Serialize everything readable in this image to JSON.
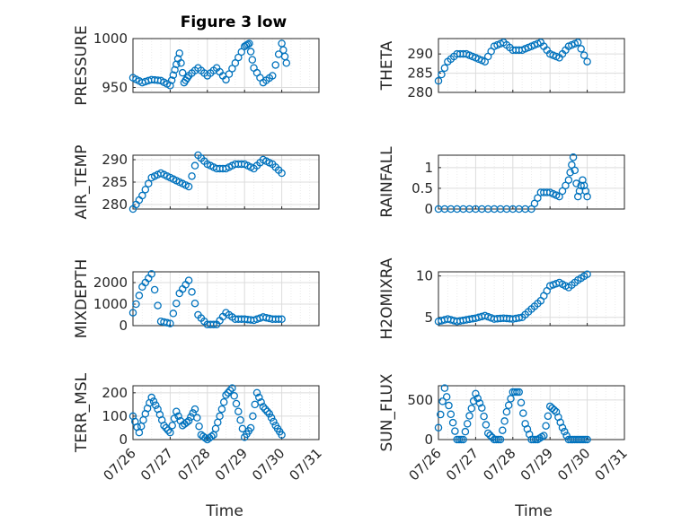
{
  "figure": {
    "title": "Figure 3 low",
    "marker_color": "#0072BD",
    "x_ticks": [
      "07/26",
      "07/27",
      "07/28",
      "07/29",
      "07/30",
      "07/31"
    ],
    "xlabel": "Time"
  },
  "chart_data": [
    {
      "type": "scatter",
      "ylabel": "PRESSURE",
      "ylim": [
        945,
        1000
      ],
      "yticks": [
        "950",
        "1000"
      ],
      "ytick_values": [
        950,
        1000
      ],
      "x": [
        "07/26 00:00",
        "07/26 06:00",
        "07/26 12:00",
        "07/26 18:00",
        "07/27 00:00",
        "07/27 03:00",
        "07/27 06:00",
        "07/27 09:00",
        "07/27 12:00",
        "07/27 18:00",
        "07/28 00:00",
        "07/28 06:00",
        "07/28 12:00",
        "07/28 18:00",
        "07/29 00:00",
        "07/29 03:00",
        "07/29 06:00",
        "07/29 12:00",
        "07/29 18:00",
        "07/30 00:00",
        "07/30 03:00"
      ],
      "y": [
        960,
        955,
        958,
        957,
        952,
        968,
        985,
        955,
        962,
        970,
        962,
        970,
        958,
        975,
        992,
        995,
        970,
        955,
        962,
        995,
        975
      ]
    },
    {
      "type": "scatter",
      "ylabel": "THETA",
      "ylim": [
        280,
        294
      ],
      "yticks": [
        "280",
        "285",
        "290"
      ],
      "ytick_values": [
        280,
        285,
        290
      ],
      "x": [
        "07/26 00:00",
        "07/26 06:00",
        "07/26 12:00",
        "07/26 18:00",
        "07/27 00:00",
        "07/27 06:00",
        "07/27 12:00",
        "07/27 18:00",
        "07/28 00:00",
        "07/28 06:00",
        "07/28 12:00",
        "07/28 18:00",
        "07/29 00:00",
        "07/29 06:00",
        "07/29 12:00",
        "07/29 18:00",
        "07/30 00:00"
      ],
      "y": [
        283,
        288,
        290,
        290,
        289,
        288,
        292,
        293,
        291,
        291,
        292,
        293,
        290,
        289,
        292,
        293,
        288
      ]
    },
    {
      "type": "scatter",
      "ylabel": "AIR_TEMP",
      "ylim": [
        279,
        291
      ],
      "yticks": [
        "280",
        "285",
        "290"
      ],
      "ytick_values": [
        280,
        285,
        290
      ],
      "x": [
        "07/26 00:00",
        "07/26 06:00",
        "07/26 12:00",
        "07/26 18:00",
        "07/27 00:00",
        "07/27 06:00",
        "07/27 12:00",
        "07/27 18:00",
        "07/28 00:00",
        "07/28 06:00",
        "07/28 12:00",
        "07/28 18:00",
        "07/29 00:00",
        "07/29 06:00",
        "07/29 12:00",
        "07/29 18:00",
        "07/30 00:00"
      ],
      "y": [
        279,
        282,
        286,
        287,
        286,
        285,
        284,
        291,
        289,
        288,
        288,
        289,
        289,
        288,
        290,
        289,
        287
      ]
    },
    {
      "type": "scatter",
      "ylabel": "RAINFALL",
      "ylim": [
        0,
        1.3
      ],
      "yticks": [
        "0",
        "0.5",
        "1"
      ],
      "ytick_values": [
        0,
        0.5,
        1
      ],
      "x": [
        "07/26 00:00",
        "07/26 12:00",
        "07/27 00:00",
        "07/27 12:00",
        "07/28 00:00",
        "07/28 12:00",
        "07/28 18:00",
        "07/29 00:00",
        "07/29 06:00",
        "07/29 12:00",
        "07/29 15:00",
        "07/29 18:00",
        "07/29 21:00",
        "07/30 00:00"
      ],
      "y": [
        0,
        0,
        0,
        0,
        0,
        0,
        0.4,
        0.4,
        0.3,
        0.7,
        1.25,
        0.3,
        0.7,
        0.3
      ]
    },
    {
      "type": "scatter",
      "ylabel": "MIXDEPTH",
      "ylim": [
        0,
        2500
      ],
      "yticks": [
        "0",
        "1000",
        "2000"
      ],
      "ytick_values": [
        0,
        1000,
        2000
      ],
      "x": [
        "07/26 00:00",
        "07/26 06:00",
        "07/26 12:00",
        "07/26 18:00",
        "07/27 00:00",
        "07/27 06:00",
        "07/27 12:00",
        "07/27 18:00",
        "07/28 00:00",
        "07/28 06:00",
        "07/28 12:00",
        "07/28 18:00",
        "07/29 00:00",
        "07/29 06:00",
        "07/29 12:00",
        "07/29 18:00",
        "07/30 00:00"
      ],
      "y": [
        600,
        1800,
        2400,
        200,
        100,
        1500,
        2100,
        500,
        50,
        50,
        600,
        300,
        300,
        250,
        400,
        300,
        300
      ]
    },
    {
      "type": "scatter",
      "ylabel": "H2OMIXRA",
      "ylim": [
        4,
        10.5
      ],
      "yticks": [
        "5",
        "10"
      ],
      "ytick_values": [
        5,
        10
      ],
      "x": [
        "07/26 00:00",
        "07/26 06:00",
        "07/26 12:00",
        "07/26 18:00",
        "07/27 00:00",
        "07/27 06:00",
        "07/27 12:00",
        "07/27 18:00",
        "07/28 00:00",
        "07/28 06:00",
        "07/28 12:00",
        "07/28 18:00",
        "07/29 00:00",
        "07/29 06:00",
        "07/29 12:00",
        "07/29 18:00",
        "07/30 00:00"
      ],
      "y": [
        4.5,
        4.8,
        4.5,
        4.7,
        4.9,
        5.2,
        4.8,
        4.9,
        4.8,
        5.0,
        6.0,
        7.0,
        8.8,
        9.2,
        8.6,
        9.5,
        10.2
      ]
    },
    {
      "type": "scatter",
      "ylabel": "TERR_MSL",
      "ylim": [
        0,
        230
      ],
      "yticks": [
        "0",
        "100",
        "200"
      ],
      "ytick_values": [
        0,
        100,
        200
      ],
      "x": [
        "07/26 00:00",
        "07/26 04:00",
        "07/26 08:00",
        "07/26 12:00",
        "07/26 16:00",
        "07/26 20:00",
        "07/27 00:00",
        "07/27 04:00",
        "07/27 08:00",
        "07/27 12:00",
        "07/27 16:00",
        "07/27 20:00",
        "07/28 00:00",
        "07/28 04:00",
        "07/28 08:00",
        "07/28 12:00",
        "07/28 16:00",
        "07/28 20:00",
        "07/29 00:00",
        "07/29 04:00",
        "07/29 08:00",
        "07/29 12:00",
        "07/29 16:00",
        "07/29 20:00",
        "07/30 00:00"
      ],
      "y": [
        100,
        30,
        110,
        180,
        130,
        60,
        30,
        120,
        60,
        80,
        130,
        20,
        0,
        20,
        100,
        190,
        220,
        120,
        10,
        50,
        200,
        140,
        110,
        60,
        20
      ]
    },
    {
      "type": "scatter",
      "ylabel": "SUN_FLUX",
      "ylim": [
        0,
        680
      ],
      "yticks": [
        "0",
        "500"
      ],
      "ytick_values": [
        0,
        500
      ],
      "x": [
        "07/26 00:00",
        "07/26 04:00",
        "07/26 08:00",
        "07/26 12:00",
        "07/26 16:00",
        "07/26 20:00",
        "07/27 00:00",
        "07/27 04:00",
        "07/27 08:00",
        "07/27 12:00",
        "07/27 16:00",
        "07/27 20:00",
        "07/28 00:00",
        "07/28 04:00",
        "07/28 08:00",
        "07/28 12:00",
        "07/28 16:00",
        "07/28 20:00",
        "07/29 00:00",
        "07/29 04:00",
        "07/29 08:00",
        "07/29 12:00",
        "07/29 16:00",
        "07/29 20:00",
        "07/30 00:00"
      ],
      "y": [
        150,
        650,
        320,
        0,
        0,
        300,
        580,
        400,
        80,
        0,
        0,
        350,
        600,
        600,
        200,
        0,
        0,
        50,
        420,
        350,
        150,
        0,
        0,
        0,
        0
      ]
    }
  ]
}
